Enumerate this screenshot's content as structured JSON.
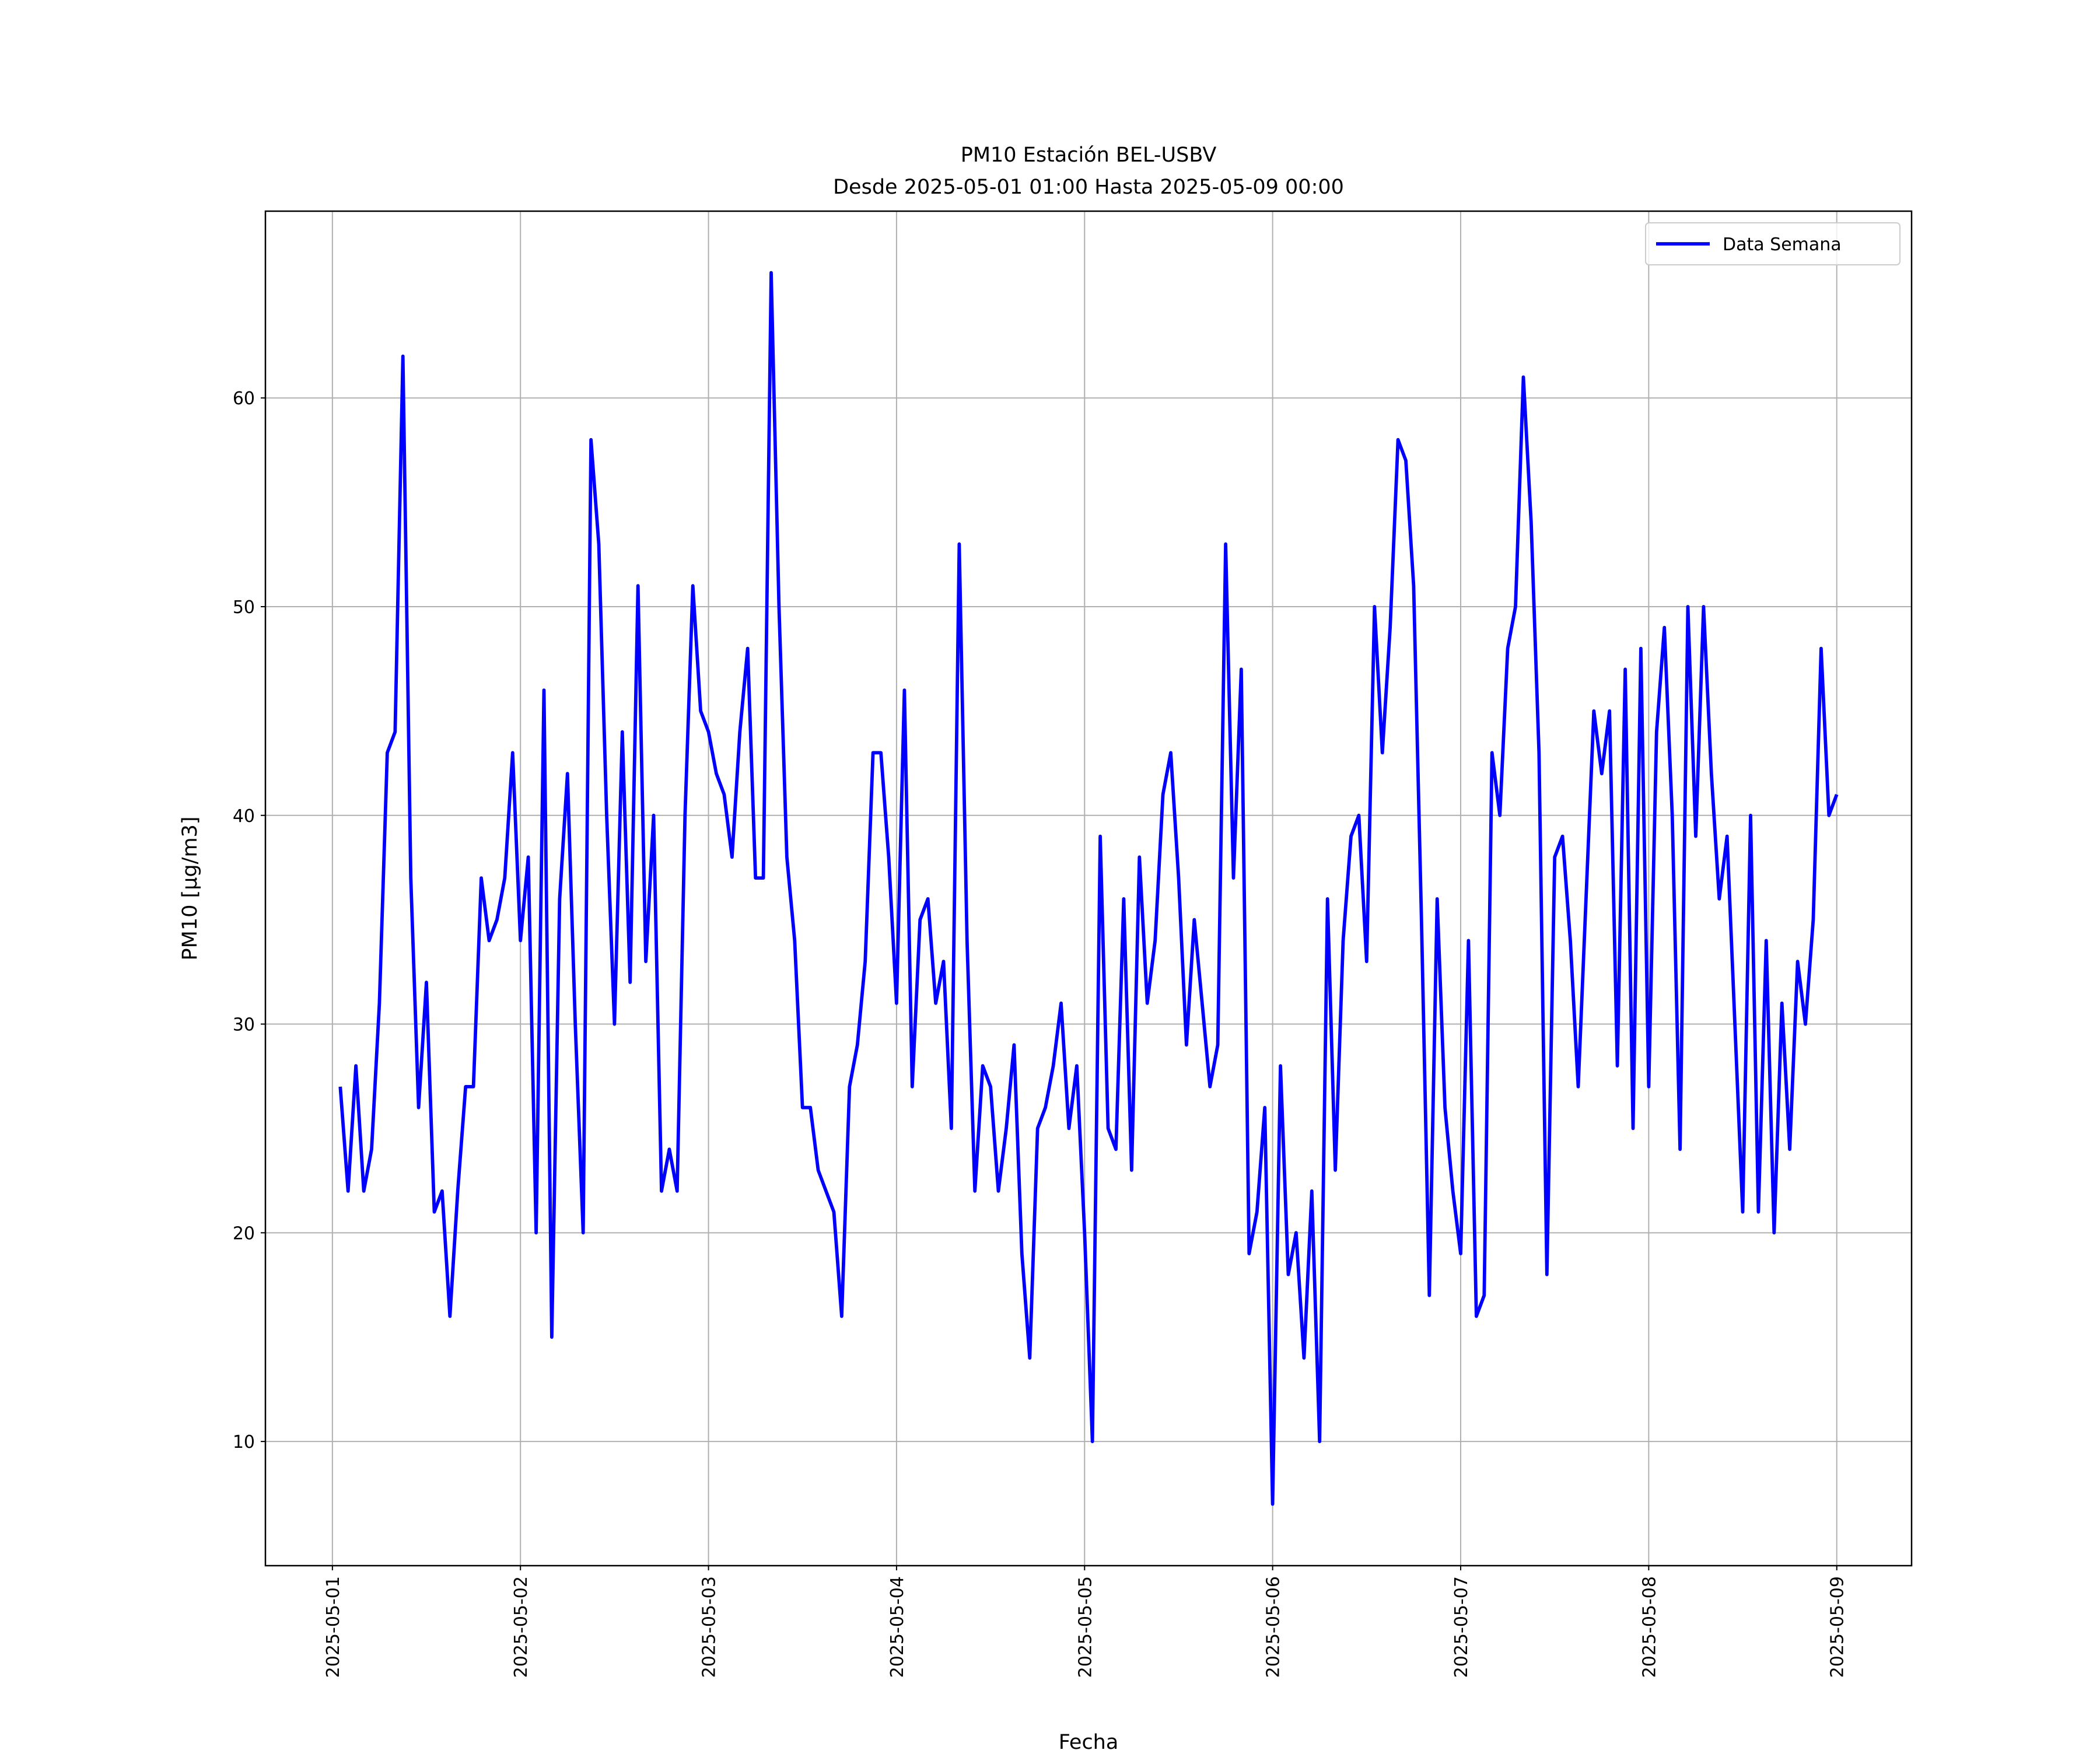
{
  "chart_data": {
    "type": "line",
    "title": "PM10 Estación BEL-USBV",
    "subtitle": "Desde 2025-05-01 01:00 Hasta 2025-05-09 00:00",
    "xlabel": "Fecha",
    "ylabel": "PM10 [μg/m3]",
    "x": [
      "2025-05-01 01:00",
      "2025-05-01 02:00",
      "2025-05-01 03:00",
      "2025-05-01 04:00",
      "2025-05-01 05:00",
      "2025-05-01 06:00",
      "2025-05-01 07:00",
      "2025-05-01 08:00",
      "2025-05-01 09:00",
      "2025-05-01 10:00",
      "2025-05-01 11:00",
      "2025-05-01 12:00",
      "2025-05-01 13:00",
      "2025-05-01 14:00",
      "2025-05-01 15:00",
      "2025-05-01 16:00",
      "2025-05-01 17:00",
      "2025-05-01 18:00",
      "2025-05-01 19:00",
      "2025-05-01 20:00",
      "2025-05-01 21:00",
      "2025-05-01 22:00",
      "2025-05-01 23:00",
      "2025-05-02 00:00",
      "2025-05-02 01:00",
      "2025-05-02 02:00",
      "2025-05-02 03:00",
      "2025-05-02 04:00",
      "2025-05-02 05:00",
      "2025-05-02 06:00",
      "2025-05-02 07:00",
      "2025-05-02 08:00",
      "2025-05-02 09:00",
      "2025-05-02 10:00",
      "2025-05-02 11:00",
      "2025-05-02 12:00",
      "2025-05-02 13:00",
      "2025-05-02 14:00",
      "2025-05-02 15:00",
      "2025-05-02 16:00",
      "2025-05-02 17:00",
      "2025-05-02 18:00",
      "2025-05-02 19:00",
      "2025-05-02 20:00",
      "2025-05-02 21:00",
      "2025-05-02 22:00",
      "2025-05-02 23:00",
      "2025-05-03 00:00",
      "2025-05-03 01:00",
      "2025-05-03 02:00",
      "2025-05-03 03:00",
      "2025-05-03 04:00",
      "2025-05-03 05:00",
      "2025-05-03 06:00",
      "2025-05-03 07:00",
      "2025-05-03 08:00",
      "2025-05-03 09:00",
      "2025-05-03 10:00",
      "2025-05-03 11:00",
      "2025-05-03 12:00",
      "2025-05-03 13:00",
      "2025-05-03 14:00",
      "2025-05-03 15:00",
      "2025-05-03 16:00",
      "2025-05-03 17:00",
      "2025-05-03 18:00",
      "2025-05-03 19:00",
      "2025-05-03 20:00",
      "2025-05-03 21:00",
      "2025-05-03 22:00",
      "2025-05-03 23:00",
      "2025-05-04 00:00",
      "2025-05-04 01:00",
      "2025-05-04 02:00",
      "2025-05-04 03:00",
      "2025-05-04 04:00",
      "2025-05-04 05:00",
      "2025-05-04 06:00",
      "2025-05-04 07:00",
      "2025-05-04 08:00",
      "2025-05-04 09:00",
      "2025-05-04 10:00",
      "2025-05-04 11:00",
      "2025-05-04 12:00",
      "2025-05-04 13:00",
      "2025-05-04 14:00",
      "2025-05-04 15:00",
      "2025-05-04 16:00",
      "2025-05-04 17:00",
      "2025-05-04 18:00",
      "2025-05-04 19:00",
      "2025-05-04 20:00",
      "2025-05-04 21:00",
      "2025-05-04 22:00",
      "2025-05-04 23:00",
      "2025-05-05 00:00",
      "2025-05-05 01:00",
      "2025-05-05 02:00",
      "2025-05-05 03:00",
      "2025-05-05 04:00",
      "2025-05-05 05:00",
      "2025-05-05 06:00",
      "2025-05-05 07:00",
      "2025-05-05 08:00",
      "2025-05-05 09:00",
      "2025-05-05 10:00",
      "2025-05-05 11:00",
      "2025-05-05 12:00",
      "2025-05-05 13:00",
      "2025-05-05 14:00",
      "2025-05-05 15:00",
      "2025-05-05 16:00",
      "2025-05-05 17:00",
      "2025-05-05 18:00",
      "2025-05-05 19:00",
      "2025-05-05 20:00",
      "2025-05-05 21:00",
      "2025-05-05 22:00",
      "2025-05-05 23:00",
      "2025-05-06 00:00",
      "2025-05-06 01:00",
      "2025-05-06 02:00",
      "2025-05-06 03:00",
      "2025-05-06 04:00",
      "2025-05-06 05:00",
      "2025-05-06 06:00",
      "2025-05-06 07:00",
      "2025-05-06 08:00",
      "2025-05-06 09:00",
      "2025-05-06 10:00",
      "2025-05-06 11:00",
      "2025-05-06 12:00",
      "2025-05-06 13:00",
      "2025-05-06 14:00",
      "2025-05-06 15:00",
      "2025-05-06 16:00",
      "2025-05-06 17:00",
      "2025-05-06 18:00",
      "2025-05-06 19:00",
      "2025-05-06 20:00",
      "2025-05-06 21:00",
      "2025-05-06 22:00",
      "2025-05-06 23:00",
      "2025-05-07 00:00",
      "2025-05-07 01:00",
      "2025-05-07 02:00",
      "2025-05-07 03:00",
      "2025-05-07 04:00",
      "2025-05-07 05:00",
      "2025-05-07 06:00",
      "2025-05-07 07:00",
      "2025-05-07 08:00",
      "2025-05-07 09:00",
      "2025-05-07 10:00",
      "2025-05-07 11:00",
      "2025-05-07 12:00",
      "2025-05-07 13:00",
      "2025-05-07 14:00",
      "2025-05-07 15:00",
      "2025-05-07 16:00",
      "2025-05-07 17:00",
      "2025-05-07 18:00",
      "2025-05-07 19:00",
      "2025-05-07 20:00",
      "2025-05-07 21:00",
      "2025-05-07 22:00",
      "2025-05-07 23:00",
      "2025-05-08 00:00",
      "2025-05-08 01:00",
      "2025-05-08 02:00",
      "2025-05-08 03:00",
      "2025-05-08 04:00",
      "2025-05-08 05:00",
      "2025-05-08 06:00",
      "2025-05-08 07:00",
      "2025-05-08 08:00",
      "2025-05-08 09:00",
      "2025-05-08 10:00",
      "2025-05-08 11:00",
      "2025-05-08 12:00",
      "2025-05-08 13:00",
      "2025-05-08 14:00",
      "2025-05-08 15:00",
      "2025-05-08 16:00",
      "2025-05-08 17:00",
      "2025-05-08 18:00",
      "2025-05-08 19:00",
      "2025-05-08 20:00",
      "2025-05-08 21:00",
      "2025-05-08 22:00",
      "2025-05-08 23:00",
      "2025-05-09 00:00"
    ],
    "series": [
      {
        "name": "Data Semana",
        "color": "#0000ff",
        "values": [
          27,
          22,
          28,
          22,
          24,
          31,
          43,
          44,
          62,
          37,
          26,
          32,
          21,
          22,
          16,
          22,
          27,
          27,
          37,
          34,
          35,
          37,
          43,
          34,
          38,
          20,
          46,
          15,
          36,
          42,
          30,
          20,
          58,
          53,
          40,
          30,
          44,
          32,
          51,
          33,
          40,
          22,
          24,
          22,
          40,
          51,
          45,
          44,
          42,
          41,
          38,
          44,
          48,
          37,
          37,
          66,
          50,
          38,
          34,
          26,
          26,
          23,
          22,
          21,
          16,
          27,
          29,
          33,
          43,
          43,
          38,
          31,
          46,
          27,
          35,
          36,
          31,
          33,
          25,
          53,
          34,
          22,
          28,
          27,
          22,
          25,
          29,
          19,
          14,
          25,
          26,
          28,
          31,
          25,
          28,
          20,
          10,
          39,
          25,
          24,
          36,
          23,
          38,
          31,
          34,
          41,
          43,
          37,
          29,
          35,
          31,
          27,
          29,
          53,
          37,
          47,
          19,
          21,
          26,
          7,
          28,
          18,
          20,
          14,
          22,
          10,
          36,
          23,
          34,
          39,
          40,
          33,
          50,
          43,
          49,
          58,
          57,
          51,
          35,
          17,
          36,
          26,
          22,
          19,
          34,
          16,
          17,
          43,
          40,
          48,
          50,
          61,
          54,
          43,
          18,
          38,
          39,
          34,
          27,
          36,
          45,
          42,
          45,
          28,
          47,
          25,
          48,
          27,
          44,
          49,
          40,
          24,
          50,
          39,
          50,
          42,
          36,
          39,
          30,
          21,
          40,
          21,
          34,
          20,
          31,
          24,
          33,
          30,
          35,
          48,
          40,
          41
        ]
      }
    ],
    "xlim": [
      "2025-04-30 15:27",
      "2025-05-09 09:33"
    ],
    "xticks": [
      "2025-05-01",
      "2025-05-02",
      "2025-05-03",
      "2025-05-04",
      "2025-05-05",
      "2025-05-06",
      "2025-05-07",
      "2025-05-08",
      "2025-05-09"
    ],
    "ylim": [
      4.05,
      68.95
    ],
    "yticks": [
      10,
      20,
      30,
      40,
      50,
      60
    ],
    "grid": true,
    "legend": "upper right"
  }
}
